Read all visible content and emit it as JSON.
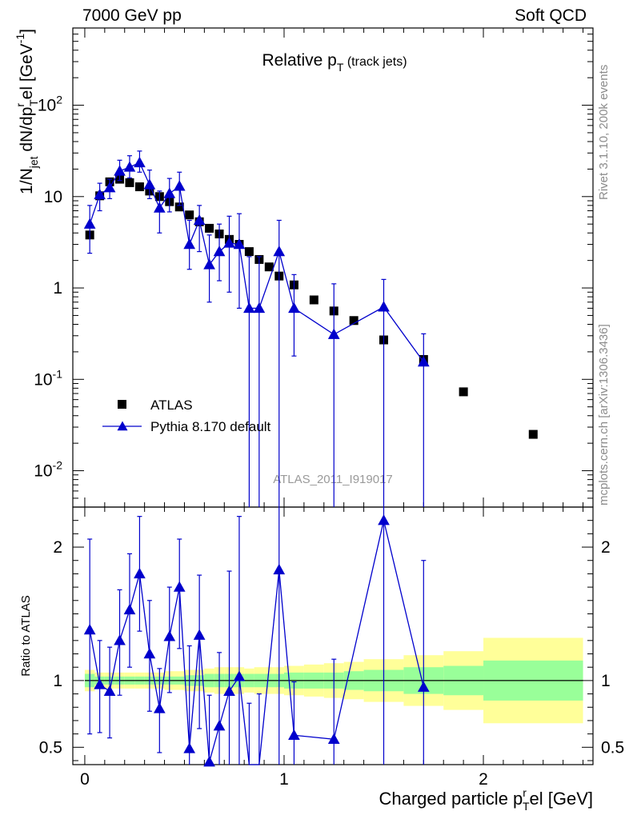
{
  "header": {
    "left": "7000 GeV pp",
    "right": "Soft QCD"
  },
  "side_labels": {
    "rivet": "Rivet 3.1.10,  200k events",
    "url": "mcplots.cern.ch [arXiv:1306.3436]"
  },
  "colors": {
    "data": "#000000",
    "mc": "#0000cc",
    "band_inner": "#99ff99",
    "band_outer": "#ffff99",
    "watermark": "#999999"
  },
  "chart_data": {
    "type": "scatter",
    "title": "Relative p",
    "title_sub": "T",
    "title_tail": "(track jets)",
    "watermark": "ATLAS_2011_I919017",
    "xlabel": "Charged particle p",
    "xlabel_sup": "r",
    "xlabel_sub": "T",
    "xlabel_tail": "el [GeV]",
    "ylabel_parts": [
      "1/N",
      "jet",
      " dN/dp",
      "r",
      "T",
      "el [GeV",
      "-1",
      "]"
    ],
    "ratio_ylabel": "Ratio to ATLAS",
    "xlim": [
      -0.06,
      2.55
    ],
    "ylim_main": [
      0.004,
      700
    ],
    "ylim_ratio": [
      0.37,
      2.3
    ],
    "yscale_main": "log",
    "xticks": [
      {
        "value": 0,
        "label": "0"
      },
      {
        "value": 1,
        "label": "1"
      },
      {
        "value": 2,
        "label": "2"
      }
    ],
    "yticks_main": [
      {
        "value": 0.01,
        "base": "10",
        "exp": "-2"
      },
      {
        "value": 0.1,
        "base": "10",
        "exp": "-1"
      },
      {
        "value": 1,
        "base": "1",
        "exp": ""
      },
      {
        "value": 10,
        "base": "10",
        "exp": ""
      },
      {
        "value": 100,
        "base": "10",
        "exp": "2"
      }
    ],
    "yticks_ratio": [
      {
        "value": 0.5,
        "label": "0.5"
      },
      {
        "value": 1,
        "label": "1"
      },
      {
        "value": 2,
        "label": "2"
      }
    ],
    "legend": {
      "position": "bottom-left",
      "entries": [
        "ATLAS",
        "Pythia 8.170 default"
      ]
    },
    "series": [
      {
        "name": "ATLAS",
        "marker": "square",
        "x": [
          0.025,
          0.075,
          0.125,
          0.175,
          0.225,
          0.275,
          0.325,
          0.375,
          0.425,
          0.475,
          0.525,
          0.575,
          0.625,
          0.675,
          0.725,
          0.775,
          0.825,
          0.875,
          0.925,
          0.975,
          1.05,
          1.15,
          1.25,
          1.35,
          1.5,
          1.7,
          1.9,
          2.25
        ],
        "y": [
          3.8,
          10.2,
          14.5,
          15.5,
          14.2,
          12.8,
          11.5,
          10.0,
          8.8,
          7.7,
          6.3,
          5.3,
          4.5,
          3.9,
          3.4,
          3.0,
          2.5,
          2.05,
          1.7,
          1.35,
          1.08,
          0.74,
          0.56,
          0.44,
          0.27,
          0.165,
          0.073,
          0.025
        ]
      },
      {
        "name": "Pythia 8.170 default",
        "marker": "triangle",
        "x": [
          0.025,
          0.075,
          0.125,
          0.175,
          0.225,
          0.275,
          0.325,
          0.375,
          0.425,
          0.475,
          0.525,
          0.575,
          0.625,
          0.675,
          0.725,
          0.775,
          0.825,
          0.875,
          0.975,
          1.05,
          1.25,
          1.5,
          1.7
        ],
        "y": [
          5.0,
          10.5,
          12.5,
          19.0,
          21.0,
          23.5,
          13.5,
          7.5,
          10.8,
          13.0,
          3.0,
          5.5,
          1.8,
          2.5,
          3.1,
          3.0,
          0.6,
          0.6,
          2.5,
          0.6,
          0.31,
          0.62,
          0.155
        ],
        "yerr_low": [
          2.6,
          3.5,
          3.0,
          4.0,
          5.0,
          5.0,
          4.0,
          3.5,
          4.0,
          5.0,
          1.4,
          3.0,
          1.1,
          1.3,
          2.2,
          2.4,
          0.6,
          0.6,
          2.5,
          0.42,
          0.31,
          0.62,
          0.155
        ],
        "yerr_high": [
          3.0,
          3.5,
          3.0,
          6.0,
          7.0,
          8.0,
          6.0,
          4.0,
          5.0,
          5.5,
          2.5,
          2.5,
          2.0,
          2.5,
          3.0,
          3.5,
          1.6,
          1.6,
          3.0,
          0.8,
          0.8,
          0.62,
          0.16
        ],
        "ratio": [
          1.38,
          0.97,
          0.92,
          1.3,
          1.53,
          1.8,
          1.2,
          0.79,
          1.33,
          1.7,
          0.49,
          1.34,
          0.39,
          0.66,
          0.92,
          1.03,
          0.23,
          0.3,
          1.83,
          0.59,
          0.56,
          2.2,
          0.95
        ],
        "ratio_err_low": [
          0.78,
          0.36,
          0.35,
          0.41,
          0.43,
          0.43,
          0.43,
          0.33,
          0.42,
          0.46,
          0.6,
          0.7,
          0.5,
          0.57,
          0.67,
          0.9,
          0.6,
          0.6,
          1.5,
          0.35,
          0.56,
          2.2,
          0.95
        ],
        "ratio_err_high": [
          0.68,
          0.33,
          0.33,
          0.38,
          0.42,
          0.43,
          0.4,
          0.3,
          0.37,
          0.36,
          0.77,
          0.45,
          0.5,
          0.55,
          0.9,
          1.2,
          0.6,
          0.6,
          1.0,
          0.4,
          0.6,
          0.4,
          0.95
        ],
        "ratio_below_axis": [
          false,
          false,
          false,
          false,
          false,
          false,
          false,
          false,
          false,
          false,
          false,
          false,
          false,
          false,
          false,
          false,
          true,
          true,
          false,
          false,
          false,
          false,
          false
        ]
      }
    ],
    "ratio_bands": {
      "edges": [
        0.0,
        0.05,
        0.1,
        0.15,
        0.2,
        0.25,
        0.3,
        0.35,
        0.4,
        0.45,
        0.5,
        0.55,
        0.6,
        0.65,
        0.7,
        0.75,
        0.8,
        0.85,
        0.9,
        0.95,
        1.0,
        1.1,
        1.2,
        1.3,
        1.4,
        1.6,
        1.8,
        2.0,
        2.5
      ],
      "inner": [
        0.05,
        0.03,
        0.03,
        0.03,
        0.03,
        0.03,
        0.03,
        0.03,
        0.03,
        0.03,
        0.04,
        0.04,
        0.05,
        0.05,
        0.05,
        0.05,
        0.05,
        0.05,
        0.05,
        0.05,
        0.06,
        0.06,
        0.06,
        0.07,
        0.08,
        0.1,
        0.11,
        0.15
      ],
      "outer": [
        0.08,
        0.06,
        0.06,
        0.06,
        0.06,
        0.06,
        0.06,
        0.06,
        0.07,
        0.07,
        0.08,
        0.08,
        0.09,
        0.1,
        0.1,
        0.1,
        0.09,
        0.1,
        0.1,
        0.1,
        0.11,
        0.12,
        0.13,
        0.14,
        0.16,
        0.19,
        0.22,
        0.32
      ]
    }
  }
}
